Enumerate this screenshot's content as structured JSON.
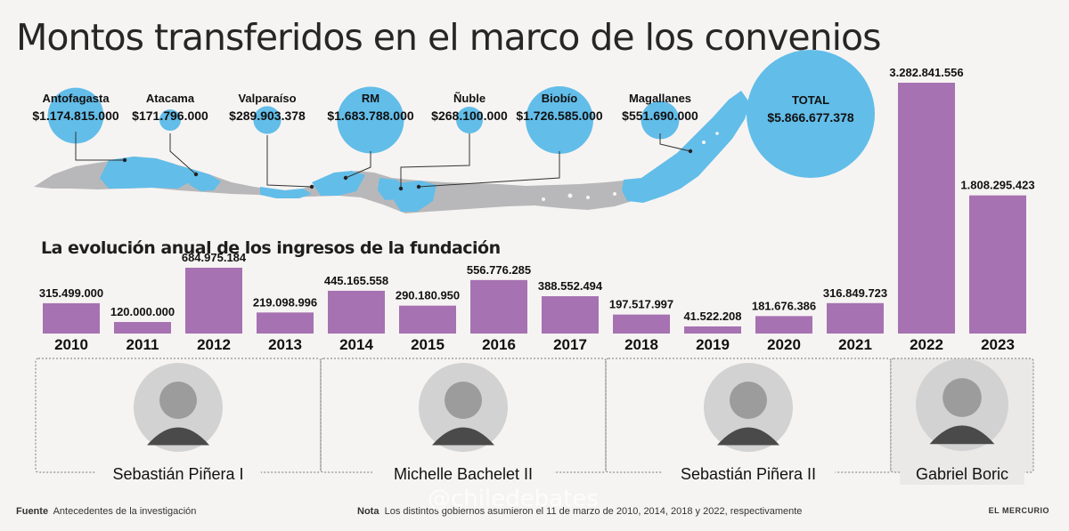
{
  "title": "Montos transferidos en el marco de los convenios",
  "subtitle": "La evolución anual de los ingresos de la fundación",
  "colors": {
    "bar": "#a672b2",
    "map_blue": "#62bde9",
    "map_gray": "#b8b8ba",
    "bg": "#f6f4f2"
  },
  "regions": [
    {
      "name": "Antofagasta",
      "amount": "$1.174.815.000",
      "value": 1174815000
    },
    {
      "name": "Atacama",
      "amount": "$171.796.000",
      "value": 171796000
    },
    {
      "name": "Valparaíso",
      "amount": "$289.903.378",
      "value": 289903378
    },
    {
      "name": "RM",
      "amount": "$1.683.788.000",
      "value": 1683788000
    },
    {
      "name": "Ñuble",
      "amount": "$268.100.000",
      "value": 268100000
    },
    {
      "name": "Biobío",
      "amount": "$1.726.585.000",
      "value": 1726585000
    },
    {
      "name": "Magallanes",
      "amount": "$551.690.000",
      "value": 551690000
    },
    {
      "name": "TOTAL",
      "amount": "$5.866.677.378",
      "value": 5866677378
    }
  ],
  "chart_data": {
    "type": "bar",
    "title": "La evolución anual de los ingresos de la fundación",
    "categories": [
      "2010",
      "2011",
      "2012",
      "2013",
      "2014",
      "2015",
      "2016",
      "2017",
      "2018",
      "2019",
      "2020",
      "2021",
      "2022",
      "2023"
    ],
    "values": [
      315499000,
      120000000,
      684975184,
      219098996,
      445165558,
      290180950,
      556776285,
      388552494,
      197517997,
      41522208,
      181676386,
      316849723,
      3282841556,
      1808295423
    ],
    "labels": [
      "315.499.000",
      "120.000.000",
      "684.975.184",
      "219.098.996",
      "445.165.558",
      "290.180.950",
      "556.776.285",
      "388.552.494",
      "197.517.997",
      "41.522.208",
      "181.676.386",
      "316.849.723",
      "3.282.841.556",
      "1.808.295.423"
    ],
    "periods": [
      {
        "name": "Sebastián Piñera I",
        "years": [
          "2010",
          "2013"
        ]
      },
      {
        "name": "Michelle Bachelet II",
        "years": [
          "2014",
          "2017"
        ]
      },
      {
        "name": "Sebastián Piñera II",
        "years": [
          "2018",
          "2021"
        ]
      },
      {
        "name": "Gabriel Boric",
        "years": [
          "2022",
          "2023"
        ]
      }
    ]
  },
  "footer": {
    "source_label": "Fuente",
    "source_text": "Antecedentes de la investigación",
    "note_label": "Nota",
    "note_text": "Los distintos gobiernos asumieron el 11 de marzo de 2010, 2014, 2018 y 2022, respectivamente",
    "brand": "EL MERCURIO"
  },
  "watermark": "@chiledebates"
}
